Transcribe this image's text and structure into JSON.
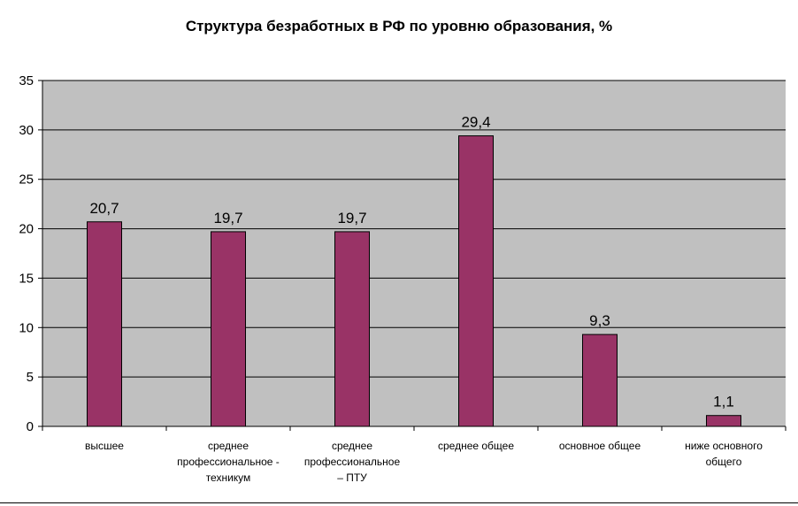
{
  "chart_data": {
    "type": "bar",
    "title": "Структура безработных в РФ по уровню образования, %",
    "xlabel": "",
    "ylabel": "",
    "categories": [
      "высшее",
      "среднее\nпрофессиональное -\nтехникум",
      "среднее\nпрофессиональное\n– ПТУ",
      "среднее общее",
      "основное общее",
      "ниже основного\nобщего"
    ],
    "values": [
      20.7,
      19.7,
      19.7,
      29.4,
      9.3,
      1.1
    ],
    "value_labels": [
      "20,7",
      "19,7",
      "19,7",
      "29,4",
      "9,3",
      "1,1"
    ],
    "ylim": [
      0,
      35
    ],
    "yticks": [
      0,
      5,
      10,
      15,
      20,
      25,
      30,
      35
    ],
    "grid": true,
    "legend": "none",
    "colors": {
      "bar": "#993366",
      "plot_background": "#c0c0c0",
      "gridline": "#000000"
    }
  }
}
